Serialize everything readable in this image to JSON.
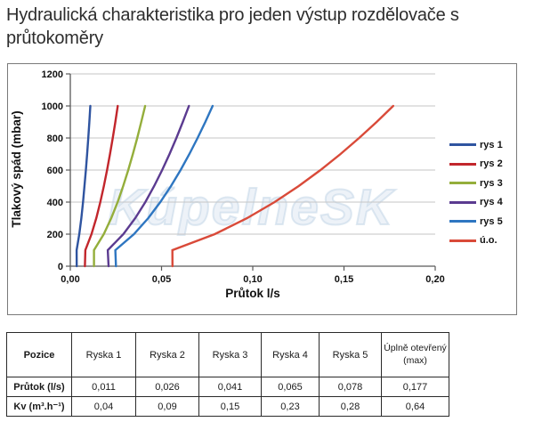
{
  "page": {
    "title": "Hydraulická charakteristika pro jeden výstup rozdělovače s průtokoměry",
    "watermark": "KúpelneSK"
  },
  "chart_data": {
    "type": "line",
    "title": "",
    "xlabel": "Průtok l/s",
    "ylabel": "Tlakový spád (mbar)",
    "xlim": [
      0,
      0.2
    ],
    "ylim": [
      0,
      1200
    ],
    "x_tick_values": [
      0,
      0.05,
      0.1,
      0.15,
      0.2
    ],
    "x_tick_labels": [
      "0,00",
      "0,05",
      "0,10",
      "0,15",
      "0,20"
    ],
    "y_tick_values": [
      0,
      200,
      400,
      600,
      800,
      1000,
      1200
    ],
    "y_tick_labels": [
      "0",
      "200",
      "400",
      "600",
      "800",
      "1000",
      "1200"
    ],
    "grid": "horizontal-only",
    "legend_position": "right",
    "curve_model": "pressure drop rises quadratically with flow; each curve plotted from x-intercept at 0 mbar up to its flow at 1000 mbar",
    "series": [
      {
        "name": "rys 1",
        "color": "#2f54a0",
        "x_intercept": 0.0035,
        "flow_at_1000_mbar": 0.011
      },
      {
        "name": "rys 2",
        "color": "#c2262c",
        "x_intercept": 0.008,
        "flow_at_1000_mbar": 0.026
      },
      {
        "name": "rys 3",
        "color": "#94ae3b",
        "x_intercept": 0.013,
        "flow_at_1000_mbar": 0.041
      },
      {
        "name": "rys 4",
        "color": "#5b3b90",
        "x_intercept": 0.021,
        "flow_at_1000_mbar": 0.065
      },
      {
        "name": "rys 5",
        "color": "#2e76c1",
        "x_intercept": 0.025,
        "flow_at_1000_mbar": 0.078
      },
      {
        "name": "ú.o.",
        "color": "#d94a39",
        "x_intercept": 0.056,
        "flow_at_1000_mbar": 0.177
      }
    ]
  },
  "table": {
    "columns": [
      "Pozice",
      "Ryska 1",
      "Ryska 2",
      "Ryska 3",
      "Ryska 4",
      "Ryska 5",
      "Úplně otevřený (max)"
    ],
    "rows": [
      {
        "label": "Průtok (l/s)",
        "values": [
          "0,011",
          "0,026",
          "0,041",
          "0,065",
          "0,078",
          "0,177"
        ]
      },
      {
        "label": "Kv (m³.h⁻¹)",
        "values": [
          "0,04",
          "0,09",
          "0,15",
          "0,23",
          "0,28",
          "0,64"
        ]
      }
    ]
  }
}
